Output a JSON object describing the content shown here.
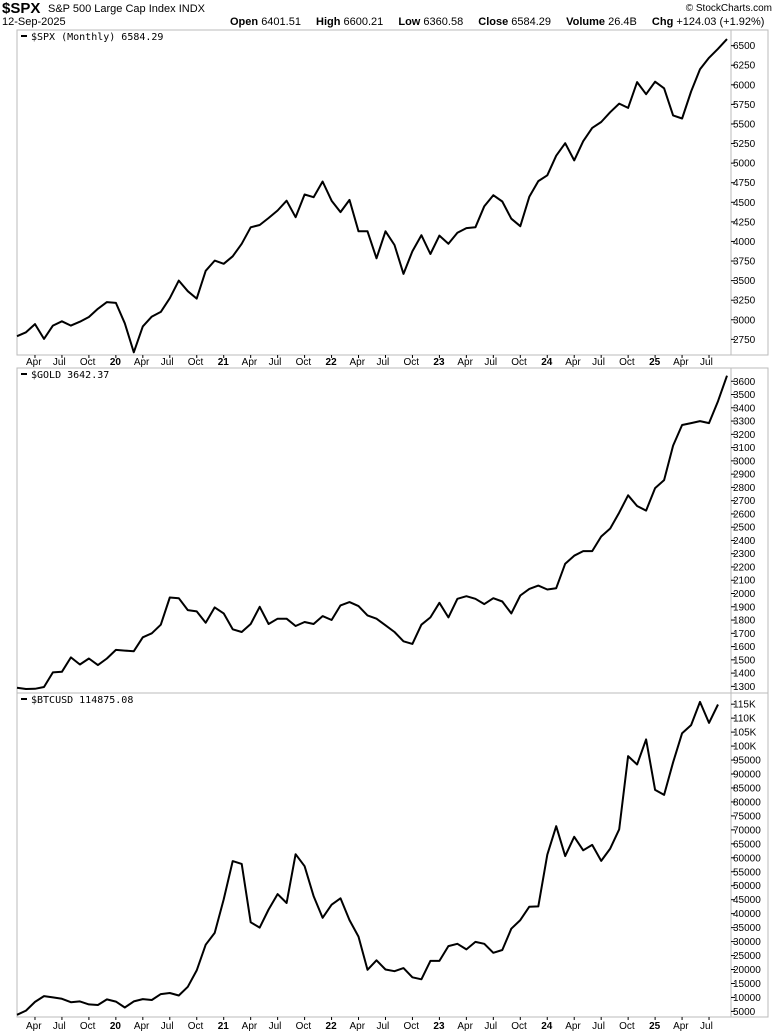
{
  "header": {
    "symbol": "$SPX",
    "name": "S&P 500 Large Cap Index",
    "exchange": "INDX",
    "date": "12-Sep-2025",
    "brand": "© StockCharts.com",
    "open_label": "Open",
    "open": "6401.51",
    "high_label": "High",
    "high": "6600.21",
    "low_label": "Low",
    "low": "6360.58",
    "close_label": "Close",
    "close": "6584.29",
    "volume_label": "Volume",
    "volume": "26.4B",
    "chg_label": "Chg",
    "chg": "+124.03 (+1.92%)"
  },
  "chart_data": [
    {
      "type": "line",
      "panel_label": "$SPX (Monthly) 6584.29",
      "axis": "right",
      "ylim": [
        2550,
        6700
      ],
      "yticks": [
        2750,
        3000,
        3250,
        3500,
        3750,
        4000,
        4250,
        4500,
        4750,
        5000,
        5250,
        5500,
        5750,
        6000,
        6250,
        6500
      ],
      "x_start": "2019-02",
      "values": [
        2790,
        2840,
        2945,
        2755,
        2925,
        2980,
        2925,
        2975,
        3035,
        3140,
        3225,
        3215,
        2955,
        2585,
        2915,
        3040,
        3100,
        3275,
        3500,
        3365,
        3270,
        3625,
        3755,
        3715,
        3810,
        3970,
        4180,
        4210,
        4300,
        4395,
        4520,
        4310,
        4600,
        4565,
        4765,
        4520,
        4375,
        4530,
        4130,
        4130,
        3785,
        4130,
        3955,
        3585,
        3875,
        4080,
        3840,
        4075,
        3970,
        4110,
        4170,
        4180,
        4450,
        4590,
        4510,
        4290,
        4195,
        4570,
        4770,
        4845,
        5095,
        5255,
        5035,
        5280,
        5450,
        5525,
        5650,
        5760,
        5705,
        6035,
        5880,
        6040,
        5955,
        5610,
        5570,
        5915,
        6200,
        6345,
        6460,
        6584
      ]
    },
    {
      "type": "line",
      "panel_label": "$GOLD 3642.37",
      "axis": "right",
      "ylim": [
        1250,
        3700
      ],
      "yticks": [
        1300,
        1400,
        1500,
        1600,
        1700,
        1800,
        1900,
        2000,
        2100,
        2200,
        2300,
        2400,
        2500,
        2600,
        2700,
        2800,
        2900,
        3000,
        3100,
        3200,
        3300,
        3400,
        3500,
        3600
      ],
      "x_start": "2019-02",
      "values": [
        1290,
        1280,
        1282,
        1295,
        1405,
        1410,
        1518,
        1465,
        1510,
        1460,
        1510,
        1575,
        1570,
        1565,
        1670,
        1700,
        1765,
        1970,
        1965,
        1875,
        1865,
        1780,
        1895,
        1850,
        1730,
        1710,
        1770,
        1900,
        1770,
        1810,
        1810,
        1755,
        1785,
        1770,
        1830,
        1800,
        1910,
        1935,
        1905,
        1835,
        1810,
        1760,
        1710,
        1640,
        1620,
        1765,
        1820,
        1930,
        1820,
        1960,
        1980,
        1960,
        1920,
        1965,
        1940,
        1850,
        1985,
        2035,
        2060,
        2030,
        2040,
        2225,
        2285,
        2320,
        2320,
        2430,
        2490,
        2610,
        2740,
        2660,
        2625,
        2795,
        2855,
        3115,
        3270,
        3285,
        3300,
        3285,
        3450,
        3642
      ]
    },
    {
      "type": "line",
      "panel_label": "$BTCUSD 114875.08",
      "axis": "right",
      "ylim": [
        3000,
        119000
      ],
      "yticks": [
        5000,
        10000,
        15000,
        20000,
        25000,
        30000,
        35000,
        40000,
        45000,
        50000,
        55000,
        60000,
        65000,
        70000,
        75000,
        80000,
        85000,
        90000,
        95000,
        100000,
        105000,
        110000,
        115000
      ],
      "ytick_labels": [
        "5000",
        "10000",
        "15000",
        "20000",
        "25000",
        "30000",
        "35000",
        "40000",
        "45000",
        "50000",
        "55000",
        "60000",
        "65000",
        "70000",
        "75000",
        "80000",
        "85000",
        "90000",
        "95000",
        "100K",
        "105K",
        "110K",
        "115K"
      ],
      "x_start": "2019-02",
      "values": [
        3800,
        5300,
        8400,
        10500,
        10000,
        9500,
        8300,
        8600,
        7500,
        7300,
        9300,
        8500,
        6400,
        8600,
        9400,
        9100,
        11200,
        11600,
        10700,
        13800,
        19700,
        28900,
        33100,
        45100,
        58800,
        57800,
        36900,
        35000,
        41500,
        47000,
        43800,
        61300,
        57000,
        46300,
        38500,
        43200,
        45500,
        37700,
        31800,
        19900,
        23300,
        20000,
        19400,
        20500,
        17200,
        16500,
        23100,
        23100,
        28400,
        29200,
        27200,
        29900,
        29200,
        26000,
        27000,
        34600,
        37700,
        42500,
        42600,
        61100,
        71300,
        60600,
        67500,
        62700,
        64600,
        58900,
        63300,
        70200,
        96400,
        93400,
        102400,
        84300,
        82500,
        94200,
        104600,
        107500,
        115800,
        108300,
        114875
      ]
    }
  ],
  "x_axis": {
    "labels": [
      "Apr",
      "Jul",
      "Oct",
      "20",
      "Apr",
      "Jul",
      "Oct",
      "21",
      "Apr",
      "Jul",
      "Oct",
      "22",
      "Apr",
      "Jul",
      "Oct",
      "23",
      "Apr",
      "Jul",
      "Oct",
      "24",
      "Apr",
      "Jul",
      "Oct",
      "25",
      "Apr",
      "Jul"
    ],
    "bold": [
      "20",
      "21",
      "22",
      "23",
      "24",
      "25"
    ]
  },
  "colors": {
    "line": "#000000",
    "grid": "#bdbdbd",
    "frame": "#bbbbbb"
  }
}
